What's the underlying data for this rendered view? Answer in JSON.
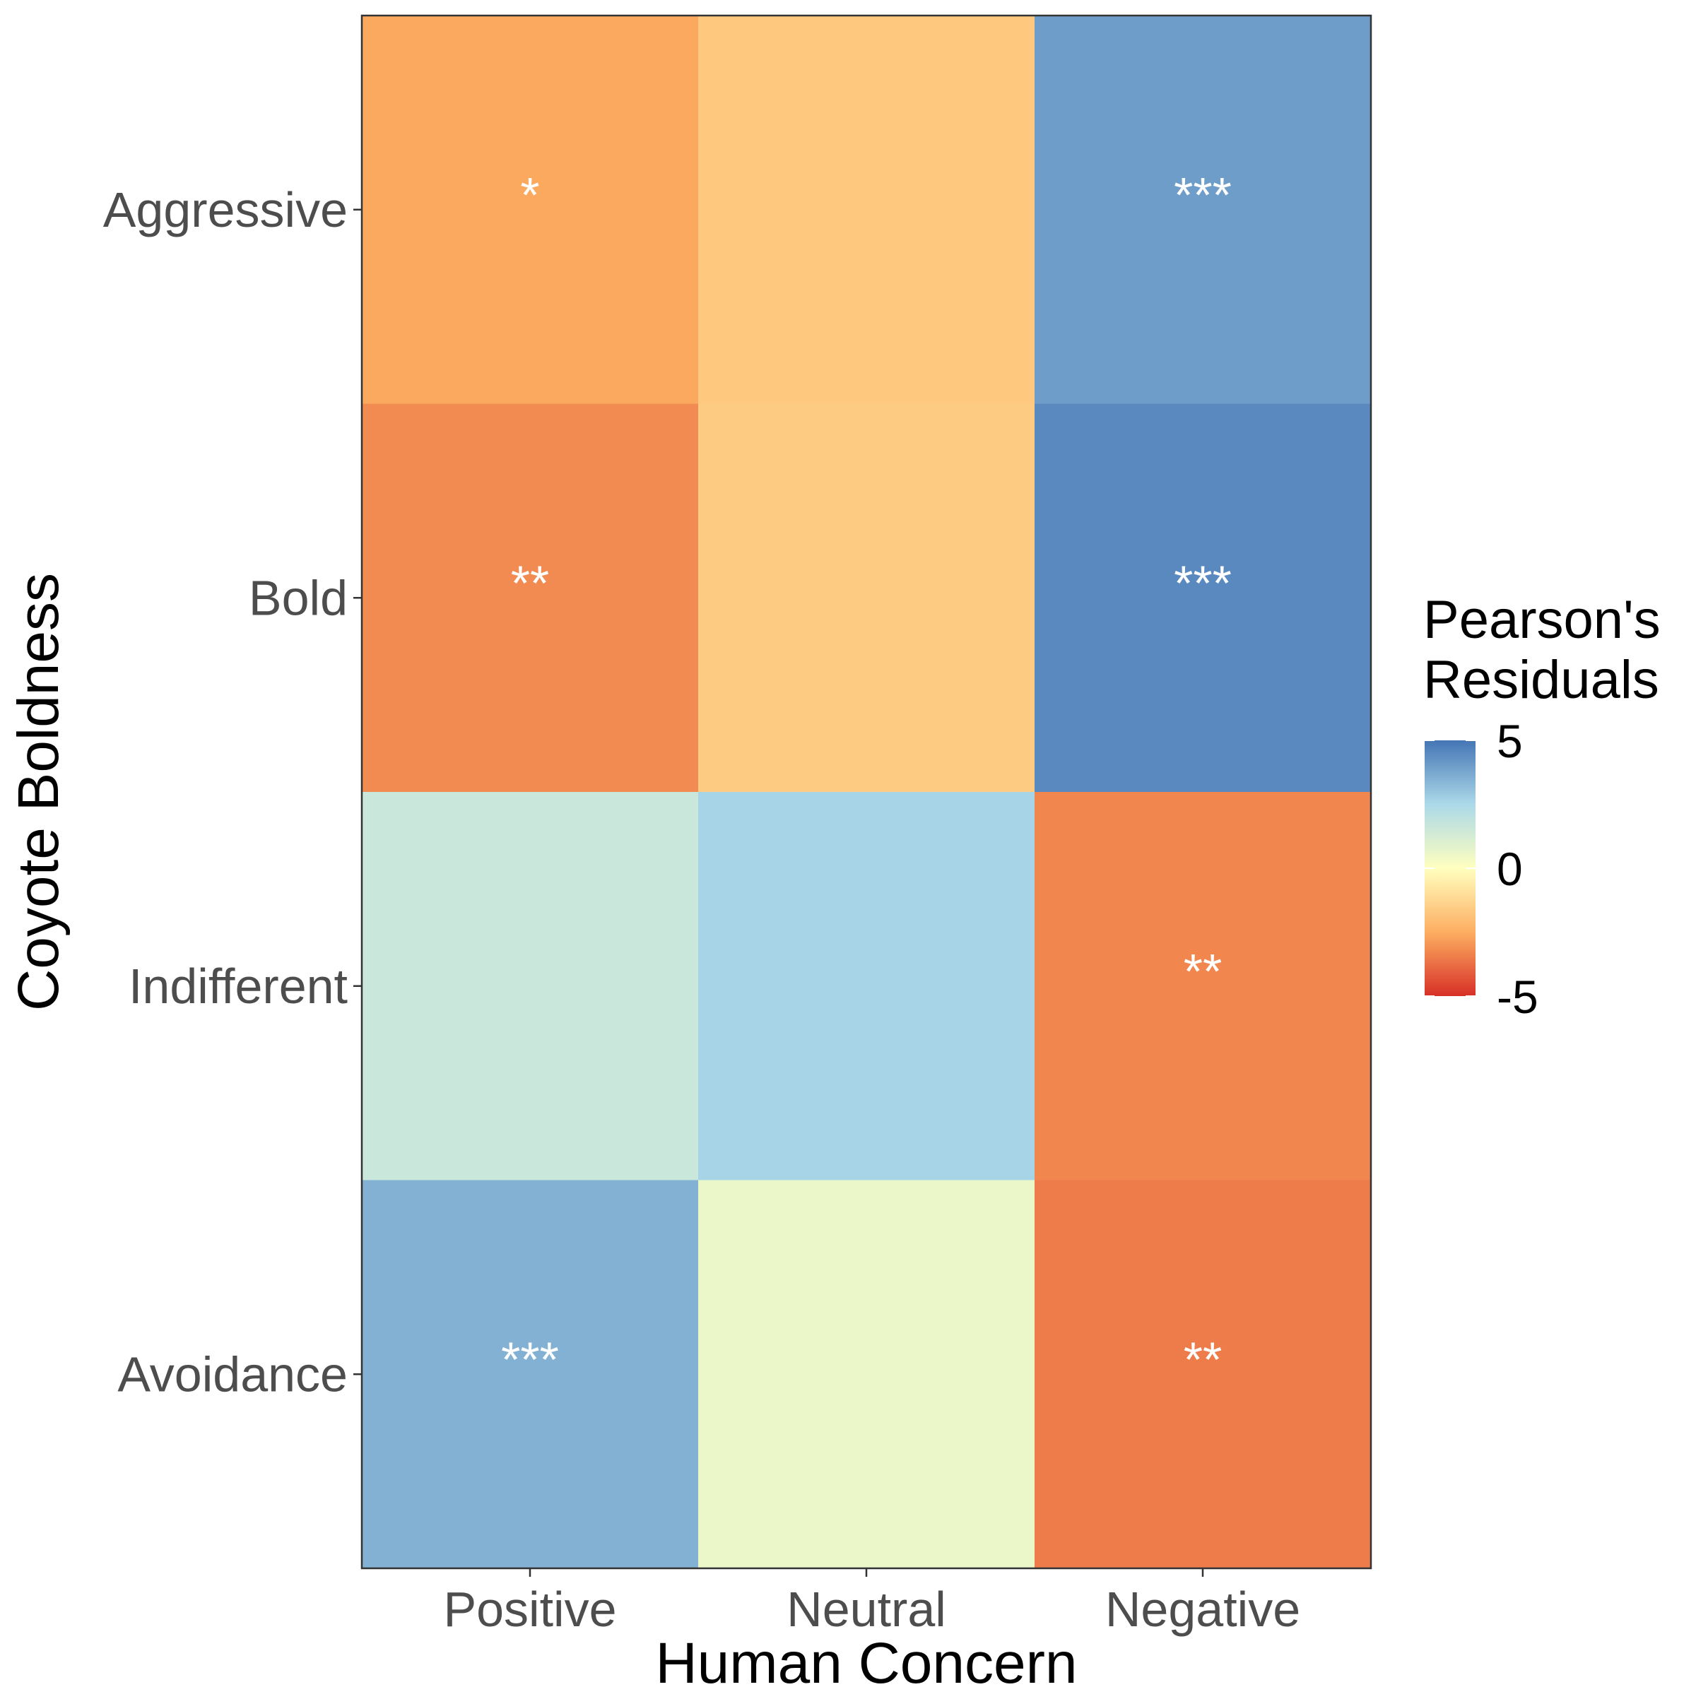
{
  "chart_data": {
    "type": "heatmap",
    "title": "",
    "xlabel": "Human Concern",
    "ylabel": "Coyote Boldness",
    "x_categories": [
      "Positive",
      "Neutral",
      "Negative"
    ],
    "y_categories": [
      "Aggressive",
      "Bold",
      "Indifferent",
      "Avoidance"
    ],
    "cells": [
      {
        "x": "Positive",
        "y": "Aggressive",
        "value": -2.6,
        "label": "*"
      },
      {
        "x": "Neutral",
        "y": "Aggressive",
        "value": -1.7,
        "label": ""
      },
      {
        "x": "Negative",
        "y": "Aggressive",
        "value": 4.0,
        "label": "***"
      },
      {
        "x": "Positive",
        "y": "Bold",
        "value": -3.2,
        "label": "**"
      },
      {
        "x": "Neutral",
        "y": "Bold",
        "value": -1.6,
        "label": ""
      },
      {
        "x": "Negative",
        "y": "Bold",
        "value": 4.5,
        "label": "***"
      },
      {
        "x": "Positive",
        "y": "Indifferent",
        "value": 1.6,
        "label": ""
      },
      {
        "x": "Neutral",
        "y": "Indifferent",
        "value": 2.6,
        "label": ""
      },
      {
        "x": "Negative",
        "y": "Indifferent",
        "value": -3.3,
        "label": "**"
      },
      {
        "x": "Positive",
        "y": "Avoidance",
        "value": 3.5,
        "label": "***"
      },
      {
        "x": "Neutral",
        "y": "Avoidance",
        "value": 0.6,
        "label": ""
      },
      {
        "x": "Negative",
        "y": "Avoidance",
        "value": -3.5,
        "label": "**"
      }
    ],
    "legend": {
      "title": "Pearson's\nResiduals",
      "position": "right",
      "ticks": [
        5,
        0,
        -5
      ],
      "range": [
        -5,
        5
      ],
      "colors": {
        "low": "#d73027",
        "mid_low": "#fdae61",
        "mid": "#ffffbf",
        "mid_high": "#abd9e9",
        "high": "#4575b4"
      }
    },
    "grid": false
  }
}
